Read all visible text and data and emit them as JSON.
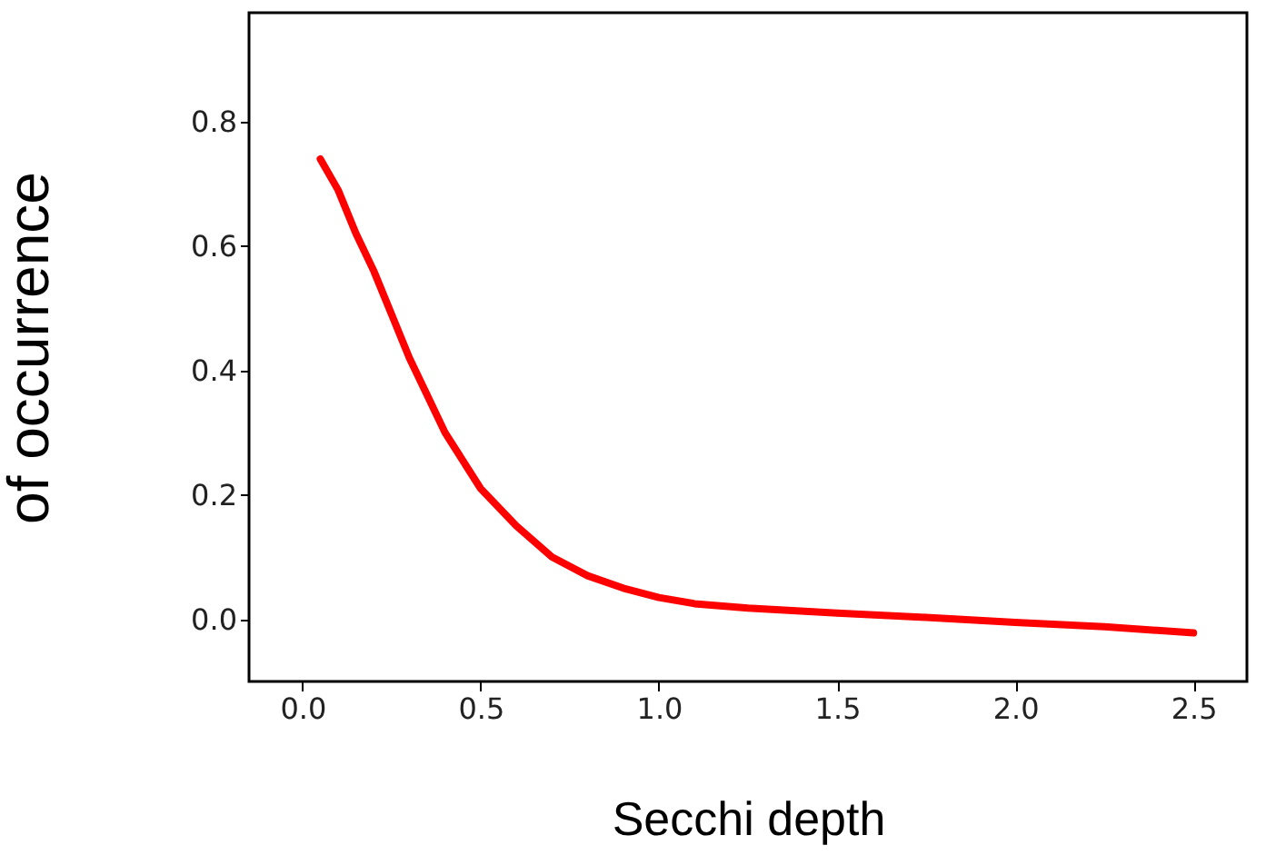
{
  "chart_data": {
    "type": "line",
    "xlabel": "Secchi depth",
    "ylabel": "of occurrence",
    "x": [
      0.05,
      0.1,
      0.15,
      0.2,
      0.25,
      0.3,
      0.35,
      0.4,
      0.5,
      0.6,
      0.7,
      0.8,
      0.9,
      1.0,
      1.1,
      1.25,
      1.5,
      1.75,
      2.0,
      2.25,
      2.5
    ],
    "series": [
      {
        "color": "#ff0000",
        "values": [
          0.74,
          0.69,
          0.62,
          0.56,
          0.49,
          0.42,
          0.36,
          0.3,
          0.21,
          0.15,
          0.1,
          0.07,
          0.05,
          0.035,
          0.025,
          0.018,
          0.01,
          0.003,
          -0.005,
          -0.012,
          -0.022
        ]
      }
    ],
    "xlim": [
      -0.15,
      2.65
    ],
    "ylim": [
      -0.1,
      0.975
    ],
    "xticks": [
      {
        "value": 0,
        "label": "0.0"
      },
      {
        "value": 0.5,
        "label": "0.5"
      },
      {
        "value": 1,
        "label": "1.0"
      },
      {
        "value": 1.5,
        "label": "1.5"
      },
      {
        "value": 2,
        "label": "2.0"
      },
      {
        "value": 2.5,
        "label": "2.5"
      }
    ],
    "yticks": [
      {
        "value": 0,
        "label": "0.0"
      },
      {
        "value": 0.2,
        "label": "0.2"
      },
      {
        "value": 0.4,
        "label": "0.4"
      },
      {
        "value": 0.6,
        "label": "0.6"
      },
      {
        "value": 0.8,
        "label": "0.8"
      }
    ],
    "grid": false,
    "marker": "none",
    "line_style": "solid"
  }
}
